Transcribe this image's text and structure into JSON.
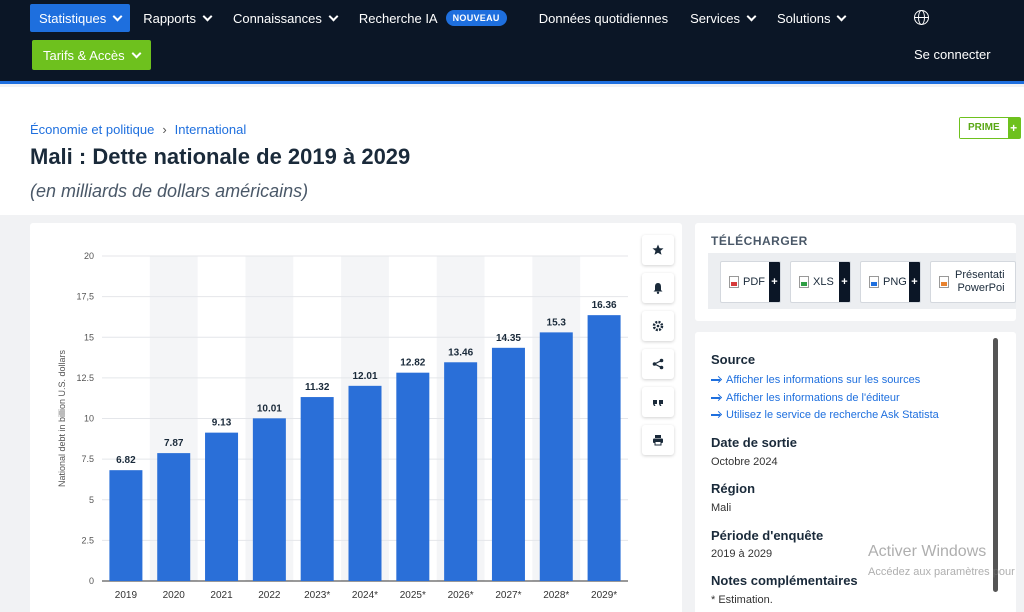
{
  "nav": {
    "items": [
      {
        "label": "Statistiques",
        "dropdown": true,
        "active": true
      },
      {
        "label": "Rapports",
        "dropdown": true
      },
      {
        "label": "Connaissances",
        "dropdown": true
      },
      {
        "label": "Recherche IA",
        "dropdown": false,
        "badge": "NOUVEAU"
      },
      {
        "label": "Données quotidiennes",
        "dropdown": false
      },
      {
        "label": "Services",
        "dropdown": true
      },
      {
        "label": "Solutions",
        "dropdown": true
      }
    ],
    "globe_icon": "globe-icon",
    "tarifs_label": "Tarifs & Accès",
    "login_label": "Se connecter"
  },
  "breadcrumb": {
    "items": [
      "Économie et politique",
      "International"
    ],
    "separator": "›"
  },
  "prime": {
    "label": "PRIME",
    "plus": "+"
  },
  "page": {
    "title": "Mali : Dette nationale de 2019 à 2029",
    "subtitle": "(en milliards de dollars américains)"
  },
  "chart_data": {
    "type": "bar",
    "categories": [
      "2019",
      "2020",
      "2021",
      "2022",
      "2023*",
      "2024*",
      "2025*",
      "2026*",
      "2027*",
      "2028*",
      "2029*"
    ],
    "values": [
      6.82,
      7.87,
      9.13,
      10.01,
      11.32,
      12.01,
      12.82,
      13.46,
      14.35,
      15.3,
      16.36
    ],
    "value_labels": [
      "6.82",
      "7.87",
      "9.13",
      "10.01",
      "11.32",
      "12.01",
      "12.82",
      "13.46",
      "14.35",
      "15.3",
      "16.36"
    ],
    "ylabel": "National debt in billion U.S. dollars",
    "ylim": [
      0,
      20
    ],
    "yticks": [
      0,
      2.5,
      5,
      7.5,
      10,
      12.5,
      15,
      17.5,
      20
    ],
    "ytick_labels": [
      "0",
      "2.5",
      "5",
      "7.5",
      "10",
      "12.5",
      "15",
      "17,5",
      "20"
    ],
    "bar_color": "#2a6fd8",
    "grid": true
  },
  "chart_tools": [
    "star-icon",
    "bell-icon",
    "gear-icon",
    "share-icon",
    "quote-icon",
    "print-icon"
  ],
  "download": {
    "title": "TÉLÉCHARGER",
    "buttons": [
      {
        "label": "PDF",
        "icon": "pdf-file-icon"
      },
      {
        "label": "XLS",
        "icon": "xls-file-icon"
      },
      {
        "label": "PNG",
        "icon": "png-file-icon"
      },
      {
        "label": "Présentation PowerPoint",
        "label_line1": "Présentati",
        "label_line2": "PowerPoi",
        "icon": "ppt-file-icon"
      }
    ],
    "plus": "+"
  },
  "info": {
    "source_title": "Source",
    "source_links": [
      "Afficher les informations sur les sources",
      "Afficher les informations de l'éditeur",
      "Utilisez le service de recherche Ask Statista"
    ],
    "release_title": "Date de sortie",
    "release_value": "Octobre 2024",
    "region_title": "Région",
    "region_value": "Mali",
    "period_title": "Période d'enquête",
    "period_value": "2019 à 2029",
    "notes_title": "Notes complémentaires",
    "notes_value": "* Estimation."
  },
  "watermark": {
    "line1": "Activer Windows",
    "line2": "Accédez aux paramètres pour"
  }
}
